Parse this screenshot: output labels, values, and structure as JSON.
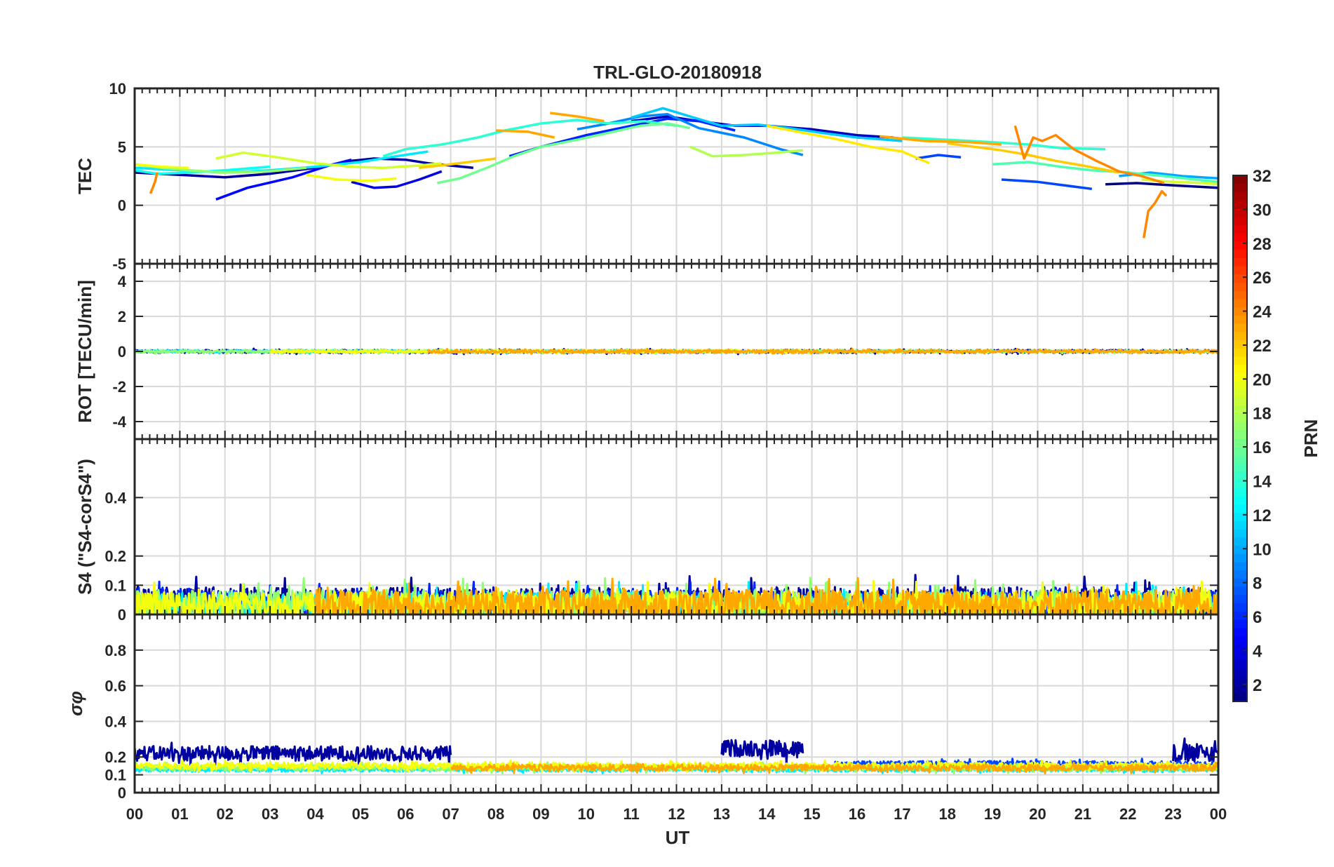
{
  "chart_data": {
    "type": "line",
    "title": "TRL-GLO-20180918",
    "xlabel": "UT",
    "x_ticks": [
      "00",
      "01",
      "02",
      "03",
      "04",
      "05",
      "06",
      "07",
      "08",
      "09",
      "10",
      "11",
      "12",
      "13",
      "14",
      "15",
      "16",
      "17",
      "18",
      "19",
      "20",
      "21",
      "22",
      "23",
      "00"
    ],
    "xlim": [
      0,
      24
    ],
    "grid": true,
    "colorbar": {
      "label": "PRN",
      "range": [
        1,
        32
      ],
      "ticks": [
        "2",
        "4",
        "6",
        "8",
        "10",
        "12",
        "14",
        "16",
        "18",
        "20",
        "22",
        "24",
        "26",
        "28",
        "30",
        "32"
      ],
      "colormap": "jet"
    },
    "panels": [
      {
        "id": "tec",
        "ylabel": "TEC",
        "ylim": [
          -5,
          10
        ],
        "yticks": [
          "-5",
          "0",
          "5",
          "10"
        ],
        "series": [
          {
            "prn": 2,
            "x": [
              0.0,
              1.0,
              2.0,
              3.0,
              4.0,
              4.8,
              5.3,
              6.0,
              6.5,
              7.0,
              7.5
            ],
            "y": [
              2.8,
              2.6,
              2.4,
              2.7,
              3.2,
              3.8,
              4.0,
              3.9,
              3.6,
              3.4,
              3.2
            ]
          },
          {
            "prn": 4,
            "x": [
              4.8,
              5.3,
              5.8,
              6.3,
              6.8
            ],
            "y": [
              2.0,
              1.5,
              1.6,
              2.2,
              2.9
            ]
          },
          {
            "prn": 5,
            "x": [
              1.8,
              2.5,
              3.5,
              4.3,
              4.8
            ],
            "y": [
              0.5,
              1.5,
              2.4,
              3.4,
              3.9
            ]
          },
          {
            "prn": 3,
            "x": [
              11.0,
              11.8,
              12.5,
              13.3,
              14.0,
              15.0,
              16.0,
              16.8
            ],
            "y": [
              7.2,
              7.6,
              7.2,
              6.8,
              6.8,
              6.5,
              6.0,
              5.8
            ]
          },
          {
            "prn": 1,
            "x": [
              21.5,
              22.2,
              23.0,
              24.0
            ],
            "y": [
              1.8,
              1.9,
              1.7,
              1.5
            ]
          },
          {
            "prn": 6,
            "x": [
              8.3,
              9.0,
              10.0,
              11.0,
              11.8,
              12.5,
              13.3
            ],
            "y": [
              4.2,
              5.0,
              6.0,
              6.8,
              7.4,
              7.2,
              6.4
            ]
          },
          {
            "prn": 7,
            "x": [
              17.3,
              17.8,
              18.3
            ],
            "y": [
              4.0,
              4.3,
              4.1
            ]
          },
          {
            "prn": 7,
            "x": [
              19.2,
              20.0,
              21.2
            ],
            "y": [
              2.2,
              2.0,
              1.4
            ]
          },
          {
            "prn": 9,
            "x": [
              9.8,
              10.5,
              11.2,
              11.8,
              12.5,
              13.5,
              14.3,
              14.8
            ],
            "y": [
              6.5,
              7.0,
              7.6,
              7.8,
              6.6,
              5.8,
              4.8,
              4.3
            ]
          },
          {
            "prn": 10,
            "x": [
              21.8,
              22.5,
              23.2,
              24.0
            ],
            "y": [
              2.5,
              2.8,
              2.5,
              2.3
            ]
          },
          {
            "prn": 11,
            "x": [
              11.0,
              11.7,
              12.3,
              13.0,
              13.8,
              14.5,
              15.2,
              16.0,
              17.0
            ],
            "y": [
              7.5,
              8.3,
              7.6,
              6.8,
              6.9,
              6.6,
              6.2,
              5.8,
              5.5
            ]
          },
          {
            "prn": 12,
            "x": [
              0.0,
              1.0,
              2.0,
              3.0,
              4.0,
              5.0,
              5.8,
              6.5
            ],
            "y": [
              3.2,
              3.0,
              2.8,
              3.0,
              3.3,
              3.7,
              4.2,
              4.6
            ]
          },
          {
            "prn": 13,
            "x": [
              0.0,
              0.5,
              1.2,
              2.0,
              3.0
            ],
            "y": [
              3.0,
              2.7,
              2.8,
              3.0,
              3.3
            ]
          },
          {
            "prn": 14,
            "x": [
              5.5,
              6.0,
              6.8,
              7.6,
              8.2,
              9.0,
              9.8,
              10.5,
              11.3,
              12.0
            ],
            "y": [
              4.2,
              4.8,
              5.2,
              5.8,
              6.4,
              7.0,
              7.3,
              7.0,
              7.2,
              6.8
            ]
          },
          {
            "prn": 14,
            "x": [
              17.0,
              18.0,
              19.0,
              19.8,
              20.5,
              21.5
            ],
            "y": [
              5.8,
              5.6,
              5.4,
              5.2,
              4.9,
              4.8
            ]
          },
          {
            "prn": 16,
            "x": [
              6.7,
              7.2,
              7.8,
              8.4,
              9.0
            ],
            "y": [
              1.9,
              2.3,
              3.2,
              4.2,
              5.0
            ]
          },
          {
            "prn": 16,
            "x": [
              9.0,
              9.8,
              10.5,
              11.2,
              11.8,
              12.3
            ],
            "y": [
              5.0,
              5.6,
              6.2,
              6.8,
              7.0,
              6.6
            ]
          },
          {
            "prn": 15,
            "x": [
              19.0,
              19.8,
              20.5,
              21.2,
              22.0,
              22.8,
              23.5,
              24.0
            ],
            "y": [
              3.5,
              3.7,
              3.3,
              3.0,
              2.8,
              2.5,
              2.2,
              2.0
            ]
          },
          {
            "prn": 17,
            "x": [
              0.0,
              0.6,
              1.2,
              2.0,
              3.0,
              3.8
            ],
            "y": [
              3.5,
              3.2,
              3.0,
              2.8,
              2.9,
              3.2
            ]
          },
          {
            "prn": 18,
            "x": [
              12.3,
              12.8,
              13.5,
              14.2,
              14.8
            ],
            "y": [
              5.0,
              4.2,
              4.3,
              4.5,
              4.7
            ]
          },
          {
            "prn": 19,
            "x": [
              1.8,
              2.4,
              3.0,
              4.0,
              4.8,
              5.5,
              6.3,
              6.8
            ],
            "y": [
              4.0,
              4.5,
              4.2,
              3.6,
              3.3,
              3.2,
              3.4,
              3.6
            ]
          },
          {
            "prn": 19,
            "x": [
              22.3,
              23.0,
              23.7,
              24.0
            ],
            "y": [
              2.2,
              2.0,
              1.9,
              1.8
            ]
          },
          {
            "prn": 20,
            "x": [
              0.0,
              0.6,
              1.2
            ],
            "y": [
              3.5,
              3.3,
              3.2
            ]
          },
          {
            "prn": 20,
            "x": [
              3.8,
              4.5,
              5.2,
              5.8
            ],
            "y": [
              2.6,
              2.2,
              2.1,
              2.3
            ]
          },
          {
            "prn": 21,
            "x": [
              14.0,
              14.8,
              15.5,
              16.3,
              17.0,
              17.6
            ],
            "y": [
              6.8,
              6.2,
              5.7,
              5.0,
              4.6,
              3.6
            ]
          },
          {
            "prn": 22,
            "x": [
              6.3,
              7.0,
              7.8,
              8.0
            ],
            "y": [
              3.2,
              3.5,
              3.9,
              4.0
            ]
          },
          {
            "prn": 22,
            "x": [
              18.0,
              18.6,
              19.2,
              19.8,
              20.4,
              21.0,
              21.8
            ],
            "y": [
              5.3,
              5.0,
              4.7,
              4.3,
              3.8,
              3.4,
              2.8
            ]
          },
          {
            "prn": 23,
            "x": [
              8.0,
              8.7,
              9.3
            ],
            "y": [
              6.4,
              6.3,
              5.8
            ]
          },
          {
            "prn": 23,
            "x": [
              9.2,
              9.8,
              10.4
            ],
            "y": [
              7.9,
              7.6,
              7.2
            ]
          },
          {
            "prn": 23,
            "x": [
              16.5,
              17.5,
              18.5,
              19.2
            ],
            "y": [
              5.9,
              5.5,
              5.4,
              5.2
            ]
          },
          {
            "prn": 24,
            "x": [
              19.5,
              19.7,
              19.9,
              20.1,
              20.4,
              20.8,
              21.3,
              21.8,
              22.3,
              22.8
            ],
            "y": [
              6.8,
              4.0,
              5.8,
              5.5,
              6.0,
              4.8,
              3.8,
              2.9,
              2.5,
              1.9
            ]
          },
          {
            "prn": 24,
            "x": [
              22.35,
              22.45,
              22.6,
              22.75,
              22.85
            ],
            "y": [
              -2.8,
              -0.5,
              0.2,
              1.2,
              0.8
            ]
          },
          {
            "prn": 24,
            "x": [
              0.35,
              0.45,
              0.5
            ],
            "y": [
              1.0,
              2.0,
              2.8
            ]
          }
        ]
      },
      {
        "id": "rot",
        "ylabel": "ROT [TECU/min]",
        "ylim": [
          -5,
          5
        ],
        "yticks": [
          "-4",
          "-2",
          "0",
          "2",
          "4"
        ],
        "style": "noise",
        "series": [
          {
            "prn": 2,
            "start": 0.0,
            "end": 24.0,
            "level": 0.0,
            "amp": 0.15
          },
          {
            "prn": 12,
            "start": 0.0,
            "end": 15.0,
            "level": 0.0,
            "amp": 0.12
          },
          {
            "prn": 17,
            "start": 0.0,
            "end": 24.0,
            "level": 0.0,
            "amp": 0.12
          },
          {
            "prn": 20,
            "start": 3.0,
            "end": 15.0,
            "level": 0.0,
            "amp": 0.12
          },
          {
            "prn": 23,
            "start": 6.5,
            "end": 24.0,
            "level": 0.0,
            "amp": 0.14
          }
        ]
      },
      {
        "id": "s4",
        "ylabel": "S4 (\"S4-corS4\")",
        "ylim": [
          0,
          0.6
        ],
        "yticks": [
          "0",
          "0.1",
          "0.2",
          "0.4"
        ],
        "style": "noise",
        "series": [
          {
            "prn": 2,
            "start": 0.0,
            "end": 24.0,
            "level": 0.04,
            "amp": 0.09
          },
          {
            "prn": 6,
            "start": 0.0,
            "end": 24.0,
            "level": 0.04,
            "amp": 0.07
          },
          {
            "prn": 12,
            "start": 0.0,
            "end": 24.0,
            "level": 0.03,
            "amp": 0.08
          },
          {
            "prn": 17,
            "start": 0.0,
            "end": 24.0,
            "level": 0.03,
            "amp": 0.09
          },
          {
            "prn": 20,
            "start": 0.0,
            "end": 24.0,
            "level": 0.03,
            "amp": 0.08
          },
          {
            "prn": 23,
            "start": 4.0,
            "end": 24.0,
            "level": 0.03,
            "amp": 0.09
          }
        ]
      },
      {
        "id": "sigma",
        "ylabel": "σφ",
        "ylim": [
          0,
          1
        ],
        "yticks": [
          "0",
          "0.1",
          "0.2",
          "0.4",
          "0.6",
          "0.8"
        ],
        "style": "noise",
        "series": [
          {
            "prn": 2,
            "start": 0.0,
            "end": 7.0,
            "level": 0.22,
            "amp": 0.07
          },
          {
            "prn": 2,
            "start": 13.0,
            "end": 14.8,
            "level": 0.25,
            "amp": 0.08
          },
          {
            "prn": 2,
            "start": 23.0,
            "end": 24.0,
            "level": 0.22,
            "amp": 0.09
          },
          {
            "prn": 7,
            "start": 15.5,
            "end": 24.0,
            "level": 0.16,
            "amp": 0.03
          },
          {
            "prn": 12,
            "start": 0.0,
            "end": 24.0,
            "level": 0.13,
            "amp": 0.02
          },
          {
            "prn": 17,
            "start": 0.0,
            "end": 24.0,
            "level": 0.14,
            "amp": 0.03
          },
          {
            "prn": 20,
            "start": 0.0,
            "end": 24.0,
            "level": 0.15,
            "amp": 0.03
          },
          {
            "prn": 23,
            "start": 7.0,
            "end": 24.0,
            "level": 0.14,
            "amp": 0.03
          }
        ]
      }
    ]
  }
}
